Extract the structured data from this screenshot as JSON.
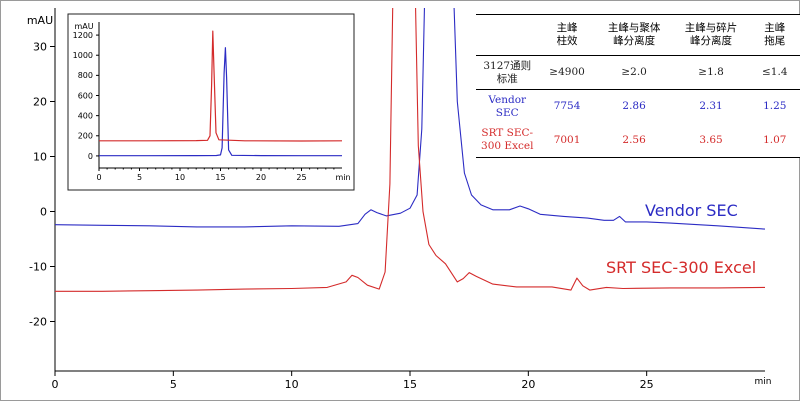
{
  "chart_data": [
    {
      "type": "line",
      "ylabel": "mAU",
      "xlabel": "min",
      "xlim": [
        0,
        30
      ],
      "ylim": [
        -29,
        37
      ],
      "x_ticks": [
        0,
        5,
        10,
        15,
        20,
        25
      ],
      "y_ticks": [
        30,
        20,
        10,
        0,
        -10,
        -20
      ],
      "series": [
        {
          "name": "Vendor SEC",
          "color": "#2c2cc4",
          "points": [
            [
              0,
              -2.4
            ],
            [
              2,
              -2.5
            ],
            [
              4,
              -2.6
            ],
            [
              6,
              -2.8
            ],
            [
              8,
              -2.8
            ],
            [
              10,
              -2.6
            ],
            [
              12,
              -2.7
            ],
            [
              12.8,
              -2.2
            ],
            [
              13.1,
              -0.5
            ],
            [
              13.35,
              0.3
            ],
            [
              13.6,
              -0.2
            ],
            [
              14.0,
              -0.8
            ],
            [
              14.6,
              -0.3
            ],
            [
              15.0,
              0.6
            ],
            [
              15.3,
              3
            ],
            [
              15.5,
              15
            ],
            [
              15.65,
              45
            ],
            [
              16.8,
              45
            ],
            [
              17.0,
              20
            ],
            [
              17.3,
              7
            ],
            [
              17.6,
              3
            ],
            [
              18.0,
              1.2
            ],
            [
              18.5,
              0.3
            ],
            [
              19.2,
              0.3
            ],
            [
              19.65,
              1
            ],
            [
              20.0,
              0.5
            ],
            [
              20.5,
              -0.5
            ],
            [
              21.5,
              -0.9
            ],
            [
              22.5,
              -1.2
            ],
            [
              23.2,
              -1.6
            ],
            [
              23.6,
              -1.6
            ],
            [
              23.85,
              -0.9
            ],
            [
              24.1,
              -1.9
            ],
            [
              25,
              -1.9
            ],
            [
              26,
              -2.1
            ],
            [
              28,
              -2.6
            ],
            [
              30,
              -3.2
            ]
          ]
        },
        {
          "name": "SRT SEC-300 Excel",
          "color": "#d42b2b",
          "points": [
            [
              0,
              -14.5
            ],
            [
              2,
              -14.5
            ],
            [
              4,
              -14.4
            ],
            [
              6,
              -14.3
            ],
            [
              8,
              -14.1
            ],
            [
              10,
              -14.0
            ],
            [
              11.5,
              -13.8
            ],
            [
              12.3,
              -12.8
            ],
            [
              12.55,
              -11.6
            ],
            [
              12.8,
              -12.0
            ],
            [
              13.2,
              -13.4
            ],
            [
              13.7,
              -14.1
            ],
            [
              13.95,
              -11
            ],
            [
              14.15,
              5
            ],
            [
              14.3,
              45
            ],
            [
              15.2,
              45
            ],
            [
              15.35,
              12
            ],
            [
              15.55,
              0
            ],
            [
              15.8,
              -6
            ],
            [
              16.1,
              -8
            ],
            [
              16.5,
              -9.5
            ],
            [
              17.0,
              -12.8
            ],
            [
              17.25,
              -12.2
            ],
            [
              17.5,
              -11.1
            ],
            [
              17.8,
              -11.8
            ],
            [
              18.5,
              -13.2
            ],
            [
              19.5,
              -13.7
            ],
            [
              21.0,
              -13.7
            ],
            [
              21.8,
              -14.3
            ],
            [
              22.05,
              -12.1
            ],
            [
              22.3,
              -13.5
            ],
            [
              22.6,
              -14.3
            ],
            [
              23.3,
              -13.8
            ],
            [
              24,
              -14.0
            ],
            [
              26,
              -13.9
            ],
            [
              28,
              -13.9
            ],
            [
              30,
              -13.8
            ]
          ]
        }
      ],
      "annotations": [
        {
          "text": "Vendor SEC",
          "color": "#2c2cc4"
        },
        {
          "text": "SRT SEC-300 Excel",
          "color": "#d42b2b"
        }
      ]
    },
    {
      "type": "line",
      "ylabel": "mAU",
      "xlabel": "min",
      "xlim": [
        0,
        30
      ],
      "ylim": [
        -120,
        1330
      ],
      "x_ticks": [
        0,
        5,
        10,
        15,
        20,
        25
      ],
      "y_ticks": [
        1200,
        1000,
        800,
        600,
        400,
        200,
        0
      ],
      "series": [
        {
          "name": "Vendor SEC",
          "color": "#2c2cc4",
          "points": [
            [
              0,
              2
            ],
            [
              6,
              2
            ],
            [
              12,
              3
            ],
            [
              14.5,
              4
            ],
            [
              15.0,
              10
            ],
            [
              15.2,
              80
            ],
            [
              15.45,
              820
            ],
            [
              15.6,
              1075
            ],
            [
              15.75,
              780
            ],
            [
              16.0,
              60
            ],
            [
              16.4,
              6
            ],
            [
              20,
              3
            ],
            [
              25,
              2
            ],
            [
              30,
              2
            ]
          ]
        },
        {
          "name": "SRT SEC-300 Excel",
          "color": "#d42b2b",
          "points": [
            [
              0,
              150
            ],
            [
              6,
              150
            ],
            [
              12,
              152
            ],
            [
              13.4,
              155
            ],
            [
              13.7,
              200
            ],
            [
              13.9,
              700
            ],
            [
              14.05,
              1240
            ],
            [
              14.2,
              850
            ],
            [
              14.45,
              230
            ],
            [
              14.8,
              160
            ],
            [
              18,
              150
            ],
            [
              25,
              148
            ],
            [
              30,
              150
            ]
          ]
        }
      ]
    }
  ],
  "table": {
    "headers": [
      [
        "主峰",
        "柱效"
      ],
      [
        "主峰与聚体",
        "峰分离度"
      ],
      [
        "主峰与碎片",
        "峰分离度"
      ],
      [
        "主峰",
        "拖尾"
      ]
    ],
    "rows": [
      {
        "label": [
          "3127通则",
          "标准"
        ],
        "values": [
          "≥4900",
          "≥2.0",
          "≥1.8",
          "≤1.4"
        ],
        "color": "#222222"
      },
      {
        "label": [
          "Vendor",
          "SEC"
        ],
        "values": [
          "7754",
          "2.86",
          "2.31",
          "1.25"
        ],
        "color": "#2c2cc4"
      },
      {
        "label": [
          "SRT SEC-",
          "300 Excel"
        ],
        "values": [
          "7001",
          "2.56",
          "3.65",
          "1.07"
        ],
        "color": "#d42b2b"
      }
    ]
  }
}
